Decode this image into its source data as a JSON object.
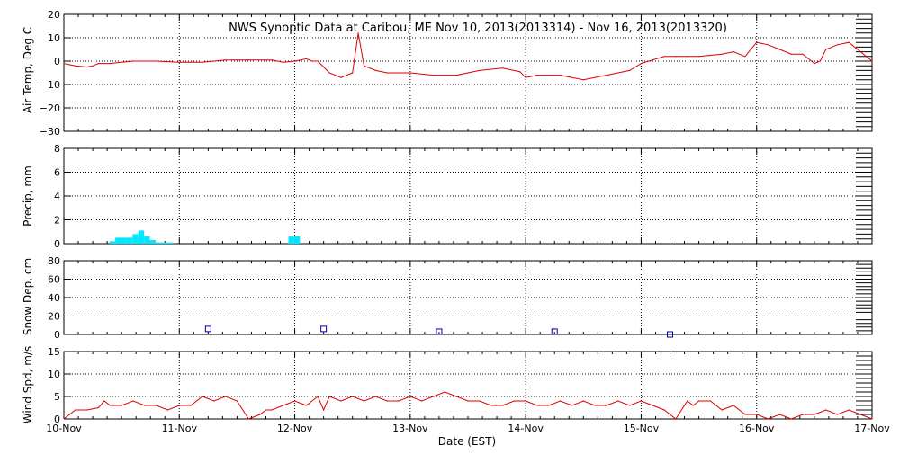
{
  "chart_data": [
    {
      "type": "line",
      "title": "NWS Synoptic Data at Caribou, ME    Nov 10, 2013(2013314) - Nov 16, 2013(2013320)",
      "ylabel": "Air Temp, Deg C",
      "ylim": [
        -30,
        20
      ],
      "yticks": [
        "20",
        "10",
        "0",
        "−10",
        "−20",
        "−30"
      ],
      "grid": true,
      "series_color": "#dd0000",
      "x": [
        0,
        0.1,
        0.2,
        0.25,
        0.3,
        0.4,
        0.5,
        0.6,
        0.8,
        1.0,
        1.2,
        1.4,
        1.6,
        1.8,
        1.9,
        2.0,
        2.1,
        2.15,
        2.2,
        2.3,
        2.4,
        2.45,
        2.5,
        2.55,
        2.6,
        2.7,
        2.8,
        3.0,
        3.2,
        3.4,
        3.5,
        3.6,
        3.8,
        3.95,
        4.0,
        4.1,
        4.3,
        4.5,
        4.7,
        4.9,
        5.0,
        5.2,
        5.3,
        5.4,
        5.5,
        5.6,
        5.7,
        5.8,
        5.9,
        6.0,
        6.1,
        6.2,
        6.3,
        6.4,
        6.5,
        6.55,
        6.6,
        6.7,
        6.8,
        6.9,
        7.0
      ],
      "values": [
        -1,
        -2,
        -2.5,
        -2,
        -1,
        -1,
        -0.5,
        0,
        0,
        -0.5,
        -0.5,
        0.5,
        0.5,
        0.5,
        -0.5,
        0,
        1,
        0,
        0,
        -5,
        -7,
        -6,
        -5,
        12,
        -2,
        -4,
        -5,
        -5,
        -6,
        -6,
        -5,
        -4,
        -3,
        -4.5,
        -7,
        -6,
        -6,
        -8,
        -6,
        -4,
        -1,
        2,
        2,
        2,
        2,
        2.5,
        3,
        4,
        2,
        8,
        7,
        5,
        3,
        3,
        -1,
        0,
        5,
        7,
        8,
        4,
        0
      ],
      "x_range": [
        0,
        7
      ]
    },
    {
      "type": "bar",
      "ylabel": "Precip, mm",
      "ylim": [
        0,
        8
      ],
      "yticks": [
        "8",
        "6",
        "4",
        "2",
        "0"
      ],
      "grid": true,
      "series_color": "#00e8ff",
      "x": [
        0.42,
        0.47,
        0.52,
        0.57,
        0.62,
        0.67,
        0.72,
        0.77,
        0.82,
        0.87,
        0.92,
        1.97,
        2.02
      ],
      "values": [
        0.2,
        0.5,
        0.5,
        0.5,
        0.8,
        1.1,
        0.6,
        0.3,
        0.1,
        0.1,
        0.1,
        0.6,
        0.6
      ],
      "x_range": [
        0,
        7
      ]
    },
    {
      "type": "scatter",
      "ylabel": "Snow Dep, cm",
      "ylim": [
        0,
        80
      ],
      "yticks": [
        "80",
        "60",
        "40",
        "20",
        "0"
      ],
      "grid": true,
      "series_color": "#0000aa",
      "x": [
        1.25,
        2.25,
        3.25,
        4.25,
        5.25
      ],
      "values": [
        6,
        6,
        3,
        3,
        0
      ],
      "x_range": [
        0,
        7
      ]
    },
    {
      "type": "line",
      "ylabel": "Wind Spd, m/s",
      "ylim": [
        0,
        15
      ],
      "yticks": [
        "15",
        "10",
        "5",
        "0"
      ],
      "grid": true,
      "series_color": "#dd0000",
      "xlabel": "Date (EST)",
      "x_ticks": [
        "10-Nov",
        "11-Nov",
        "12-Nov",
        "13-Nov",
        "14-Nov",
        "15-Nov",
        "16-Nov",
        "17-Nov"
      ],
      "x": [
        0,
        0.1,
        0.2,
        0.3,
        0.35,
        0.4,
        0.5,
        0.6,
        0.7,
        0.8,
        0.9,
        1.0,
        1.1,
        1.2,
        1.3,
        1.4,
        1.5,
        1.6,
        1.7,
        1.75,
        1.8,
        1.9,
        2.0,
        2.1,
        2.2,
        2.25,
        2.3,
        2.4,
        2.5,
        2.6,
        2.7,
        2.8,
        2.9,
        3.0,
        3.1,
        3.2,
        3.3,
        3.4,
        3.5,
        3.6,
        3.7,
        3.8,
        3.9,
        4.0,
        4.1,
        4.2,
        4.3,
        4.4,
        4.5,
        4.6,
        4.7,
        4.8,
        4.9,
        5.0,
        5.1,
        5.2,
        5.3,
        5.4,
        5.45,
        5.5,
        5.6,
        5.7,
        5.8,
        5.9,
        6.0,
        6.1,
        6.2,
        6.3,
        6.4,
        6.5,
        6.6,
        6.7,
        6.8,
        6.9,
        7.0
      ],
      "values": [
        0,
        2,
        2,
        2.5,
        4,
        3,
        3,
        4,
        3,
        3,
        2,
        3,
        3,
        5,
        4,
        5,
        4,
        0,
        1,
        2,
        2,
        3,
        4,
        3,
        5,
        2,
        5,
        4,
        5,
        4,
        5,
        4,
        4,
        5,
        4,
        5,
        6,
        5,
        4,
        4,
        3,
        3,
        4,
        4,
        3,
        3,
        4,
        3,
        4,
        3,
        3,
        4,
        3,
        4,
        3,
        2,
        0,
        4,
        3,
        4,
        4,
        2,
        3,
        1,
        1,
        0,
        1,
        0,
        1,
        1,
        2,
        1,
        2,
        1,
        0
      ],
      "x_range": [
        0,
        7
      ]
    }
  ]
}
